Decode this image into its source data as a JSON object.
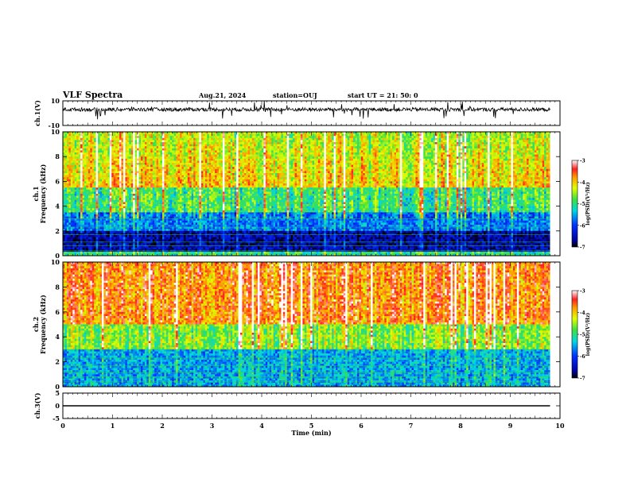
{
  "header": {
    "title": "VLF Spectra",
    "date": "Aug.21, 2024",
    "station": "station=OUJ",
    "start": "start UT = 21: 50: 0"
  },
  "chart_data": [
    {
      "id": "ch1-waveform",
      "type": "line",
      "ylabel": "ch.1(V)",
      "ylim": [
        -10,
        10
      ],
      "yticks": [
        "10",
        "-10"
      ],
      "xlim": [
        0,
        10
      ],
      "description_value": "noisy waveform with baseline near 3 and impulsive spikes"
    },
    {
      "id": "ch1-spectrogram",
      "type": "heatmap",
      "ylabel_top": "ch.1",
      "ylabel": "Frequency (kHz)",
      "ylim": [
        0,
        10
      ],
      "yticks": [
        "0",
        "2",
        "4",
        "6",
        "8",
        "10"
      ],
      "xlim": [
        0,
        10
      ],
      "colorbar": {
        "label": "log(PSD)(V²/Hz)",
        "range": [
          -7,
          -3
        ],
        "ticks": [
          "-3",
          "-4",
          "-5",
          "-6",
          "-7"
        ]
      }
    },
    {
      "id": "ch2-spectrogram",
      "type": "heatmap",
      "ylabel_top": "ch.2",
      "ylabel": "Frequency (kHz)",
      "ylim": [
        0,
        10
      ],
      "yticks": [
        "0",
        "2",
        "4",
        "6",
        "8",
        "10"
      ],
      "xlim": [
        0,
        10
      ],
      "colorbar": {
        "label": "log(PSD)(V²/Hz)",
        "range": [
          -7,
          -3
        ],
        "ticks": [
          "-3",
          "-4",
          "-5",
          "-6",
          "-7"
        ]
      }
    },
    {
      "id": "ch3-waveform",
      "type": "line",
      "ylabel": "ch.3(V)",
      "ylim": [
        -5,
        5
      ],
      "yticks": [
        "5",
        "0",
        "-5"
      ],
      "xlim": [
        0,
        10
      ],
      "x": [
        0,
        9.8
      ],
      "y": [
        0,
        0
      ]
    }
  ],
  "xaxis": {
    "label": "Time (min)",
    "ticks": [
      "0",
      "1",
      "2",
      "3",
      "4",
      "5",
      "6",
      "7",
      "8",
      "9",
      "10"
    ],
    "data_end": 9.8
  }
}
